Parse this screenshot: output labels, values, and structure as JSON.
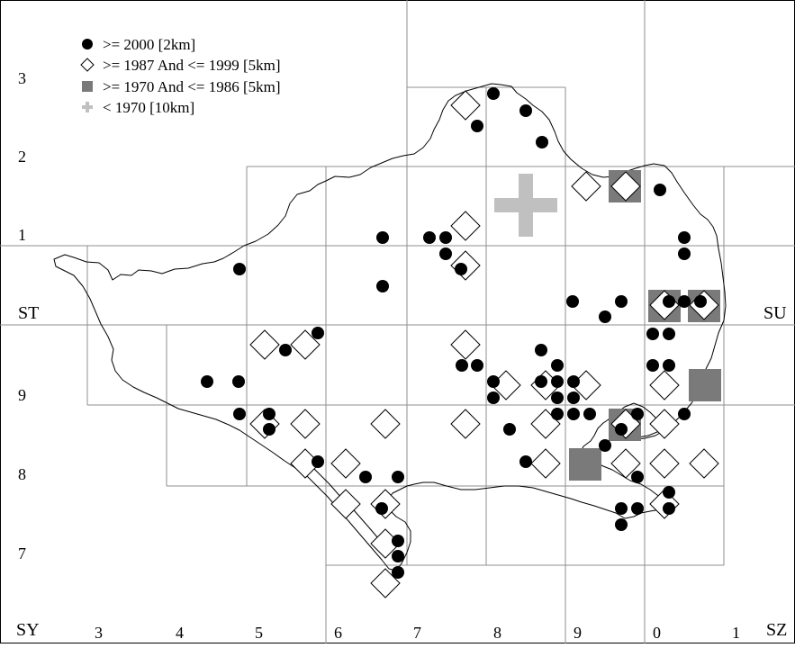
{
  "map": {
    "outer_labels": {
      "st": "ST",
      "su": "SU",
      "sy": "SY",
      "sz": "SZ"
    },
    "y_labels": [
      "3",
      "2",
      "1",
      "9",
      "8",
      "7"
    ],
    "x_labels": [
      "3",
      "4",
      "5",
      "6",
      "7",
      "8",
      "9",
      "0",
      "1"
    ]
  },
  "legend": {
    "items": [
      {
        "symbol": "filled-circle",
        "label": ">= 2000 [2km]",
        "color": "#000000"
      },
      {
        "symbol": "open-diamond",
        "label": ">= 1987 And <= 1999 [5km]",
        "color": "#000000"
      },
      {
        "symbol": "grey-square",
        "label": ">= 1970 And <= 1986 [5km]",
        "color": "#7a7a7a"
      },
      {
        "symbol": "light-plus",
        "label": "< 1970 [10km]",
        "color": "#c0c0c0"
      }
    ]
  },
  "colors": {
    "grid": "#8f8f8f",
    "outline": "#000000",
    "dot": "#000000",
    "square": "#7a7a7a",
    "plus": "#c0c0c0"
  }
}
